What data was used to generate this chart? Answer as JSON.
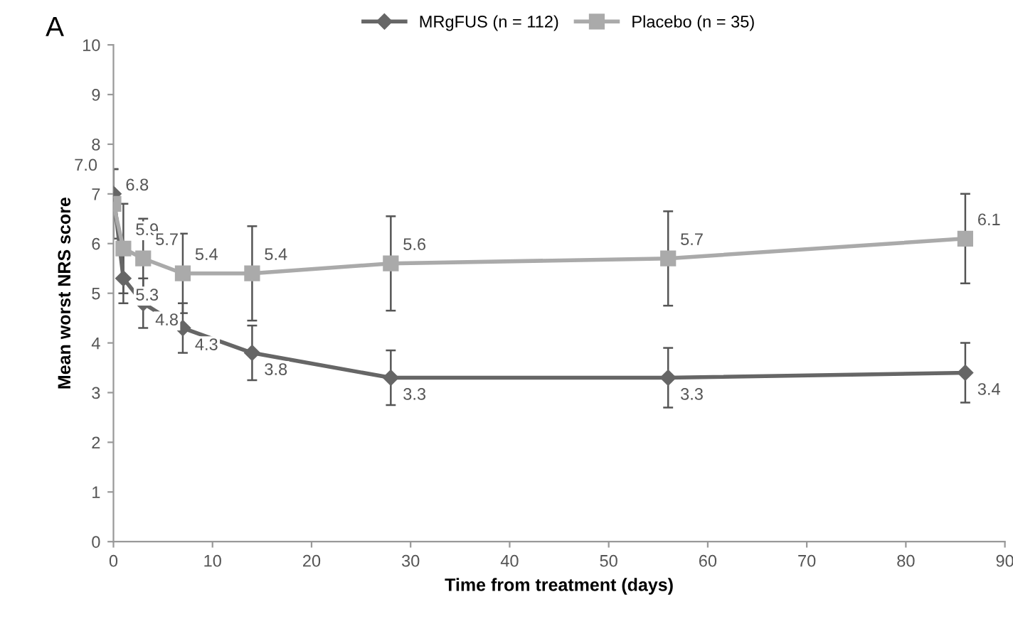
{
  "chart_data": {
    "type": "line",
    "xlabel": "Time from treatment (days)",
    "ylabel": "Mean worst NRS score",
    "x": [
      0,
      1,
      3,
      7,
      14,
      28,
      56,
      86
    ],
    "series": [
      {
        "name": "MRgFUS (n = 112)",
        "color": "#666666",
        "marker": "diamond",
        "values": [
          7.0,
          5.3,
          4.8,
          4.3,
          3.8,
          3.3,
          3.3,
          3.4
        ],
        "value_labels": [
          "7.0",
          "5.3",
          "4.8",
          "4.3",
          "3.8",
          "3.3",
          "3.3",
          "3.4"
        ],
        "errors": [
          0.5,
          0.5,
          0.5,
          0.5,
          0.55,
          0.55,
          0.6,
          0.6
        ]
      },
      {
        "name": "Placebo (n = 35)",
        "color": "#aaaaaa",
        "marker": "square",
        "values": [
          6.8,
          5.9,
          5.7,
          5.4,
          5.4,
          5.6,
          5.7,
          6.1
        ],
        "value_labels": [
          "6.8",
          "5.9",
          "5.7",
          "5.4",
          "5.4",
          "5.6",
          "5.7",
          "6.1"
        ],
        "errors": [
          0.7,
          0.9,
          0.8,
          0.8,
          0.95,
          0.95,
          0.95,
          0.9
        ]
      }
    ],
    "xlim": [
      0,
      90
    ],
    "xticks": [
      0,
      10,
      20,
      30,
      40,
      50,
      60,
      70,
      80,
      90
    ],
    "ylim": [
      0,
      10
    ],
    "yticks": [
      0,
      1,
      2,
      3,
      4,
      5,
      6,
      7,
      8,
      9,
      10
    ],
    "grid": false,
    "legend": "top",
    "line_style": "solid",
    "annotations": [
      "A"
    ]
  }
}
